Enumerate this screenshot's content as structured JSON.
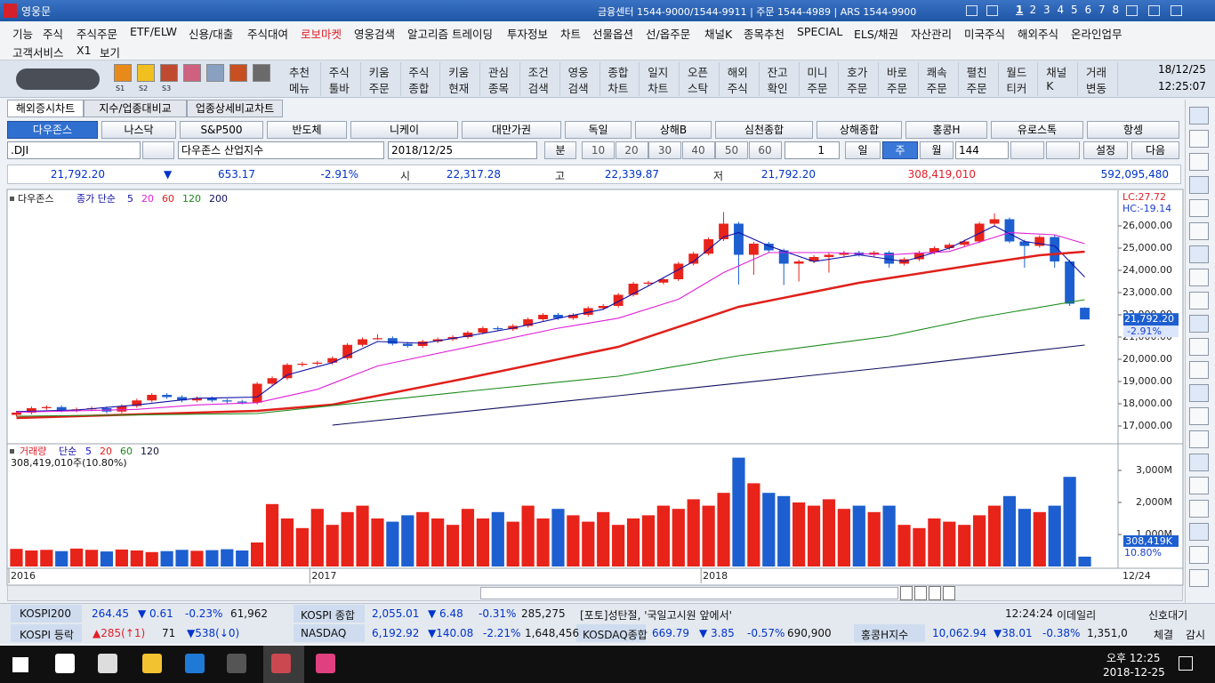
{
  "titlebar": {
    "app": "영웅문",
    "info": "금융센터 1544-9000/1544-9911 | 주문 1544-4989 | ARS 1544-9900",
    "screens": [
      "1",
      "2",
      "3",
      "4",
      "5",
      "6",
      "7",
      "8"
    ]
  },
  "menu": {
    "row1": [
      "기능",
      "주식",
      "주식주문",
      "ETF/ELW",
      "신용/대출",
      "주식대여",
      "로보마켓",
      "영웅검색",
      "알고리즘 트레이딩",
      "투자정보",
      "차트",
      "선물옵션",
      "선/옵주문",
      "채널K",
      "종목추천",
      "SPECIAL",
      "ELS/채권",
      "자산관리",
      "미국주식",
      "해외주식",
      "온라인업무"
    ],
    "row2": [
      "고객서비스",
      "X1",
      "보기"
    ]
  },
  "toolbar": {
    "slots": [
      "S1",
      "S2",
      "S3"
    ],
    "buttons": [
      [
        "추천",
        "메뉴"
      ],
      [
        "주식",
        "툴바"
      ],
      [
        "키움",
        "주문"
      ],
      [
        "주식",
        "종합"
      ],
      [
        "키움",
        "현재"
      ],
      [
        "관심",
        "종목"
      ],
      [
        "조건",
        "검색"
      ],
      [
        "영웅",
        "검색"
      ],
      [
        "종합",
        "차트"
      ],
      [
        "일지",
        "차트"
      ],
      [
        "오픈",
        "스탁"
      ],
      [
        "해외",
        "주식"
      ],
      [
        "잔고",
        "확인"
      ],
      [
        "미니",
        "주문"
      ],
      [
        "호가",
        "주문"
      ],
      [
        "바로",
        "주문"
      ],
      [
        "쾌속",
        "주문"
      ],
      [
        "펼친",
        "주문"
      ],
      [
        "월드",
        "티커"
      ],
      [
        "채널",
        "K"
      ],
      [
        "거래",
        "변동"
      ]
    ],
    "date": "18/12/25",
    "time": "12:25:07"
  },
  "tabs": [
    "해외증시차트",
    "지수/업종대비교",
    "업종상세비교차트"
  ],
  "indices": [
    "다우존스",
    "나스닥",
    "S&P500",
    "반도체",
    "니케이",
    "대만가권",
    "독일",
    "상해B",
    "심천종합",
    "상해종합",
    "홍콩H",
    "유로스톡",
    "항셍"
  ],
  "controls": {
    "symbol": ".DJI",
    "symbol_name": "다우존스 산업지수",
    "date": "2018/12/25",
    "minute": "분",
    "minute_options": [
      "10",
      "20",
      "30",
      "40",
      "50",
      "60"
    ],
    "tick": "1",
    "periods": [
      "일",
      "주",
      "월"
    ],
    "count": "144",
    "settings": "설정",
    "next": "다음"
  },
  "quote": {
    "price": "21,792.20",
    "arrow": "▼",
    "change": "653.17",
    "pct": "-2.91%",
    "open_label": "시",
    "open": "22,317.28",
    "high_label": "고",
    "high": "22,339.87",
    "low_label": "저",
    "low": "21,792.20",
    "volume": "308,419,010",
    "amount": "592,095,480"
  },
  "chart_data": {
    "type": "candlestick",
    "name": "다우존스",
    "legend_label": "종가 단순",
    "up_color": "#e8231a",
    "down_color": "#1d5fd0",
    "ohlc": [
      [
        17500,
        17680,
        17420,
        17600
      ],
      [
        17600,
        17880,
        17520,
        17800
      ],
      [
        17800,
        17930,
        17720,
        17850
      ],
      [
        17850,
        17930,
        17620,
        17700
      ],
      [
        17700,
        17830,
        17620,
        17750
      ],
      [
        17750,
        17880,
        17670,
        17800
      ],
      [
        17800,
        17880,
        17570,
        17650
      ],
      [
        17650,
        17980,
        17570,
        17900
      ],
      [
        17900,
        18230,
        17820,
        18150
      ],
      [
        18150,
        18480,
        18070,
        18400
      ],
      [
        18400,
        18480,
        18220,
        18300
      ],
      [
        18300,
        18380,
        18070,
        18150
      ],
      [
        18150,
        18330,
        18070,
        18250
      ],
      [
        18250,
        18330,
        18070,
        18150
      ],
      [
        18150,
        18230,
        18020,
        18100
      ],
      [
        18100,
        18180,
        17970,
        18050
      ],
      [
        18050,
        18980,
        17970,
        18900
      ],
      [
        18900,
        19230,
        18820,
        19150
      ],
      [
        19150,
        19830,
        19070,
        19750
      ],
      [
        19750,
        19880,
        19670,
        19800
      ],
      [
        19800,
        19930,
        19720,
        19850
      ],
      [
        19850,
        20130,
        19770,
        20050
      ],
      [
        20050,
        20730,
        19970,
        20650
      ],
      [
        20650,
        20980,
        20570,
        20900
      ],
      [
        20900,
        21130,
        20870,
        20950
      ],
      [
        20950,
        21030,
        20620,
        20700
      ],
      [
        20700,
        20780,
        20520,
        20600
      ],
      [
        20600,
        20880,
        20520,
        20800
      ],
      [
        20800,
        20980,
        20720,
        20900
      ],
      [
        20900,
        21080,
        20820,
        21000
      ],
      [
        21000,
        21280,
        20920,
        21200
      ],
      [
        21200,
        21480,
        21120,
        21400
      ],
      [
        21400,
        21480,
        21270,
        21350
      ],
      [
        21350,
        21580,
        21270,
        21500
      ],
      [
        21500,
        21880,
        21420,
        21800
      ],
      [
        21800,
        22080,
        21720,
        22000
      ],
      [
        22000,
        22080,
        21770,
        21850
      ],
      [
        21850,
        22080,
        21770,
        22000
      ],
      [
        22000,
        22380,
        21920,
        22300
      ],
      [
        22300,
        22480,
        22220,
        22400
      ],
      [
        22400,
        22980,
        22320,
        22900
      ],
      [
        22900,
        23480,
        22820,
        23400
      ],
      [
        23400,
        23530,
        23320,
        23450
      ],
      [
        23450,
        23680,
        23370,
        23600
      ],
      [
        23600,
        24380,
        23520,
        24300
      ],
      [
        24300,
        24830,
        24220,
        24750
      ],
      [
        24750,
        25480,
        24670,
        25400
      ],
      [
        25400,
        26620,
        25320,
        26100
      ],
      [
        26100,
        26180,
        23360,
        24700
      ],
      [
        24700,
        25280,
        23800,
        25200
      ],
      [
        25200,
        25280,
        24820,
        24900
      ],
      [
        24900,
        24980,
        23340,
        24300
      ],
      [
        24300,
        24480,
        23500,
        24400
      ],
      [
        24400,
        24680,
        24320,
        24600
      ],
      [
        24600,
        24780,
        23900,
        24700
      ],
      [
        24700,
        24880,
        24620,
        24800
      ],
      [
        24800,
        24880,
        24620,
        24700
      ],
      [
        24700,
        24880,
        24620,
        24800
      ],
      [
        24800,
        24880,
        24120,
        24300
      ],
      [
        24300,
        24580,
        24220,
        24500
      ],
      [
        24500,
        24880,
        24420,
        24800
      ],
      [
        24800,
        25080,
        24720,
        25000
      ],
      [
        25000,
        25230,
        24920,
        25150
      ],
      [
        25150,
        25380,
        25070,
        25300
      ],
      [
        25300,
        26180,
        25220,
        26100
      ],
      [
        26100,
        26560,
        26020,
        26300
      ],
      [
        26300,
        26380,
        25220,
        25300
      ],
      [
        25300,
        25380,
        24120,
        25100
      ],
      [
        25100,
        25580,
        25020,
        25500
      ],
      [
        25500,
        25580,
        24120,
        24400
      ],
      [
        24400,
        24480,
        22400,
        22500
      ],
      [
        22317.28,
        22339.87,
        21792.2,
        21792.2
      ]
    ],
    "ylim": [
      16240,
      27520
    ],
    "yticks": [
      {
        "value": 17000,
        "label": "17,000.00"
      },
      {
        "value": 18000,
        "label": "18,000.00"
      },
      {
        "value": 19000,
        "label": "19,000.00"
      },
      {
        "value": 20000,
        "label": "20,000.00"
      },
      {
        "value": 21000,
        "label": "21,000.00"
      },
      {
        "value": 22000,
        "label": "22,000.00"
      },
      {
        "value": 23000,
        "label": "23,000.00"
      },
      {
        "value": 24000,
        "label": "24,000.00"
      },
      {
        "value": 25000,
        "label": "25,000.00"
      },
      {
        "value": 26000,
        "label": "26,000.00"
      }
    ],
    "ma": [
      {
        "name": "5",
        "color": "#1010a8",
        "x": [
          0,
          4,
          8,
          12,
          16,
          18,
          21,
          24,
          27,
          30,
          33,
          36,
          39,
          42,
          45,
          47,
          48,
          50,
          53,
          56,
          59,
          62,
          65,
          67,
          69,
          71
        ],
        "values": [
          17650,
          17720,
          17950,
          18250,
          18300,
          19300,
          19850,
          20800,
          20720,
          21050,
          21400,
          21850,
          22250,
          23300,
          24400,
          25500,
          25700,
          25100,
          24400,
          24700,
          24400,
          25000,
          26000,
          25300,
          25100,
          23700
        ]
      },
      {
        "name": "20",
        "color": "#e020d8",
        "x": [
          0,
          8,
          12,
          16,
          20,
          24,
          30,
          36,
          40,
          44,
          47,
          50,
          54,
          58,
          62,
          66,
          69,
          71
        ],
        "values": [
          17620,
          17750,
          17950,
          18050,
          18650,
          19700,
          20550,
          21400,
          21850,
          22700,
          23900,
          24800,
          24800,
          24700,
          24850,
          25700,
          25600,
          25200
        ]
      },
      {
        "name": "60",
        "color": "#e0201a",
        "x": [
          0,
          16,
          21,
          30,
          40,
          48,
          56,
          64,
          68,
          71
        ],
        "values": [
          17360,
          17680,
          17960,
          19160,
          20560,
          22360,
          23440,
          24280,
          24680,
          24840
        ]
      },
      {
        "name": "120",
        "color": "#1a8a1a",
        "x": [
          0,
          16,
          30,
          40,
          48,
          58,
          64,
          71
        ],
        "values": [
          17440,
          17560,
          18560,
          19240,
          20160,
          21040,
          21880,
          22680
        ]
      },
      {
        "name": "200",
        "color": "#101060",
        "x": [
          21,
          40,
          58,
          71
        ],
        "values": [
          17040,
          18360,
          19640,
          20640
        ]
      }
    ],
    "lc_label": "LC:27.72",
    "hc_label": "HC:-19.14",
    "last_label": "21,792.20",
    "change_label": "-2.91%",
    "xticks": [
      {
        "value": 0,
        "label": "2016"
      },
      {
        "value": 20,
        "label": "2017"
      },
      {
        "value": 46,
        "label": "2018"
      }
    ],
    "end_label": "12/24",
    "volume": {
      "name": "거래량",
      "legend_label": "단순",
      "header": "308,419,010주(10.80%)",
      "values": [
        550,
        500,
        520,
        480,
        560,
        520,
        470,
        530,
        500,
        450,
        480,
        520,
        490,
        510,
        540,
        500,
        750,
        1950,
        1500,
        1200,
        1800,
        1300,
        1700,
        1900,
        1500,
        1400,
        1600,
        1700,
        1500,
        1300,
        1800,
        1500,
        1700,
        1400,
        1900,
        1500,
        1800,
        1600,
        1400,
        1700,
        1300,
        1500,
        1600,
        1900,
        1800,
        2100,
        1900,
        2300,
        3400,
        2600,
        2300,
        2200,
        2000,
        1900,
        2100,
        1800,
        1900,
        1700,
        1900,
        1300,
        1200,
        1500,
        1400,
        1300,
        1600,
        1900,
        2200,
        1800,
        1700,
        1900,
        2800,
        308.419
      ],
      "ylim": [
        0,
        3750
      ],
      "yticks": [
        {
          "value": 1000,
          "label": "1,000M"
        },
        {
          "value": 2000,
          "label": "2,000M"
        },
        {
          "value": 3000,
          "label": "3,000M"
        }
      ],
      "ma_names": [
        {
          "name": "5",
          "color": "#1010d0"
        },
        {
          "name": "20",
          "color": "#e0201a"
        },
        {
          "name": "60",
          "color": "#1a8a1a"
        },
        {
          "name": "120",
          "color": "#101040"
        }
      ],
      "last_label": "308,419K",
      "pct_label": "10.80%"
    }
  },
  "ticker": {
    "row1": [
      "KOSPI200",
      "264.45",
      "▼ 0.61",
      "-0.23%",
      "61,962",
      "KOSPI 종합",
      "2,055.01",
      "▼ 6.48",
      "-0.31%",
      "285,275",
      "[포토]성탄절, '국일고시원 앞에서'",
      "12:24:24",
      "이데일리",
      "신호대기"
    ],
    "row2": [
      "KOSPI 등락",
      "▲285(↑1)",
      "71",
      "▼538(↓0)",
      "NASDAQ",
      "6,192.92",
      "▼140.08",
      "-2.21%",
      "1,648,456",
      "KOSDAQ종합",
      "669.79",
      "▼ 3.85",
      "-0.57%",
      "690,900",
      "홍콩H지수",
      "10,062.94",
      "▼38.01",
      "-0.38%",
      "1,351,0",
      "체결",
      "감시"
    ]
  },
  "taskbar": {
    "time": "오후 12:25",
    "date": "2018-12-25"
  }
}
